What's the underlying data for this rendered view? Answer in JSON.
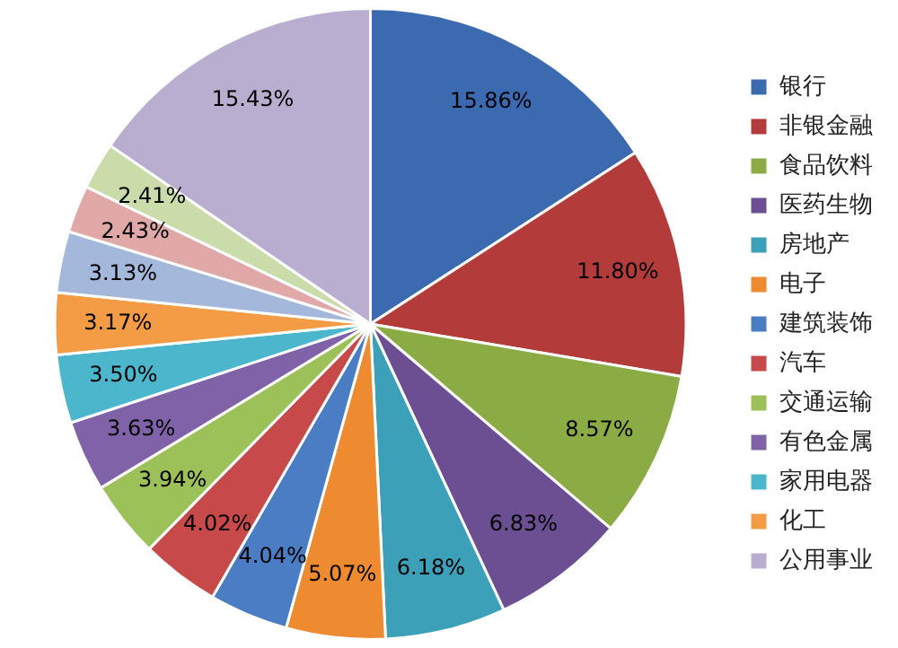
{
  "chart_data": {
    "type": "pie",
    "categories": [
      "银行",
      "非银金融",
      "食品饮料",
      "医药生物",
      "房地产",
      "电子",
      "建筑装饰",
      "汽车",
      "交通运输",
      "有色金属",
      "家用电器",
      "化工",
      null,
      null,
      null,
      "公用事业"
    ],
    "values": [
      15.86,
      11.8,
      8.57,
      6.83,
      6.18,
      5.07,
      4.04,
      4.02,
      3.94,
      3.63,
      3.5,
      3.17,
      3.13,
      2.43,
      2.41,
      15.43
    ],
    "value_labels": [
      "15.86%",
      "11.80%",
      "8.57%",
      "6.83%",
      "6.18%",
      "5.07%",
      "4.04%",
      "4.02%",
      "3.94%",
      "3.63%",
      "3.50%",
      "3.17%",
      "3.13%",
      "2.43%",
      "2.41%",
      "15.43%"
    ],
    "colors": [
      "#3c6ab0",
      "#b33c3a",
      "#8bac45",
      "#6b4f92",
      "#3ba0b8",
      "#ee8a30",
      "#4a7dc4",
      "#c8494a",
      "#9cc159",
      "#7f62a8",
      "#4bb6cc",
      "#f39b45",
      "#a4b8dc",
      "#e0a9a8",
      "#c9dca9",
      "#b9aed0"
    ],
    "legend": "right"
  }
}
